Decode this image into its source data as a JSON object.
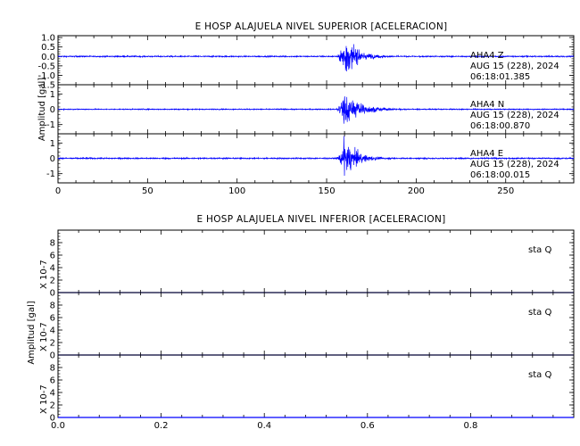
{
  "chart_data": [
    {
      "type": "line",
      "title": "E HOSP ALAJUELA NIVEL SUPERIOR [ACELERACION]",
      "ylabel": "Amplitud [gal]",
      "xlim": [
        0,
        288
      ],
      "xticks": [
        0,
        50,
        100,
        150,
        200,
        250
      ],
      "grid": false,
      "series": [
        {
          "name": "AHA4 Z",
          "station": "AHA4",
          "component": "Z",
          "date": "AUG 15 (228), 2024",
          "time": "06:18:01.385",
          "ylim": [
            -1.5,
            1.1
          ],
          "yticks": [
            "1.0",
            "0.5",
            "0.0",
            "-0.5",
            "-1.0",
            "-1.5"
          ],
          "yticks_values": [
            1.0,
            0.5,
            0.0,
            -0.5,
            -1.0,
            -1.5
          ],
          "baseline": 0.0,
          "noise_amplitude": 0.03,
          "event_onset": 155.5,
          "event_peak_time": 159.5,
          "event_peak_amplitude": 1.1,
          "event_decay": 7.5
        },
        {
          "name": "AHA4 N",
          "station": "AHA4",
          "component": "N",
          "date": "AUG 15 (228), 2024",
          "time": "06:18:00.870",
          "ylim": [
            -1.6,
            1.6
          ],
          "yticks": [
            "1",
            "0",
            "-1"
          ],
          "yticks_values": [
            1,
            0,
            -1
          ],
          "baseline": 0.0,
          "noise_amplitude": 0.03,
          "event_onset": 155.5,
          "event_peak_time": 159.5,
          "event_peak_amplitude": 1.3,
          "event_decay": 9
        },
        {
          "name": "AHA4 E",
          "station": "AHA4",
          "component": "E",
          "date": "AUG 15 (228), 2024",
          "time": "06:18:00.015",
          "ylim": [
            -1.6,
            1.6
          ],
          "yticks": [
            "1",
            "0",
            "-1"
          ],
          "yticks_values": [
            1,
            0,
            -1
          ],
          "baseline": 0.0,
          "noise_amplitude": 0.04,
          "event_onset": 155.5,
          "event_peak_time": 159.5,
          "event_peak_amplitude": 1.4,
          "event_decay": 7
        }
      ]
    },
    {
      "type": "line",
      "title": "E HOSP ALAJUELA NIVEL INFERIOR [ACELERACION]",
      "ylabel": "Amplitud [gal]",
      "xlim": [
        0,
        1.0
      ],
      "xticks": [
        "0.0",
        "0.2",
        "0.4",
        "0.6",
        "0.8"
      ],
      "xticks_values": [
        0.0,
        0.2,
        0.4,
        0.6,
        0.8
      ],
      "grid": false,
      "series": [
        {
          "name": "sta Q",
          "station": "sta",
          "component": "Q",
          "scale_label": "X 10-7",
          "ylim": [
            0,
            10
          ],
          "yticks": [
            "0",
            "2",
            "4",
            "6",
            "8"
          ],
          "yticks_values": [
            0,
            2,
            4,
            6,
            8
          ],
          "values_constant": 0
        },
        {
          "name": "sta Q",
          "station": "sta",
          "component": "Q",
          "scale_label": "X 10-7",
          "ylim": [
            0,
            10
          ],
          "yticks": [
            "0",
            "2",
            "4",
            "6",
            "8"
          ],
          "yticks_values": [
            0,
            2,
            4,
            6,
            8
          ],
          "values_constant": 0
        },
        {
          "name": "sta Q",
          "station": "sta",
          "component": "Q",
          "scale_label": "X 10-7",
          "ylim": [
            0,
            10
          ],
          "yticks": [
            "0",
            "2",
            "4",
            "6",
            "8"
          ],
          "yticks_values": [
            0,
            2,
            4,
            6,
            8
          ],
          "values_constant": 0
        }
      ]
    }
  ],
  "colors": {
    "trace": "#0000ff",
    "axis": "#000000",
    "background": "#ffffff"
  }
}
